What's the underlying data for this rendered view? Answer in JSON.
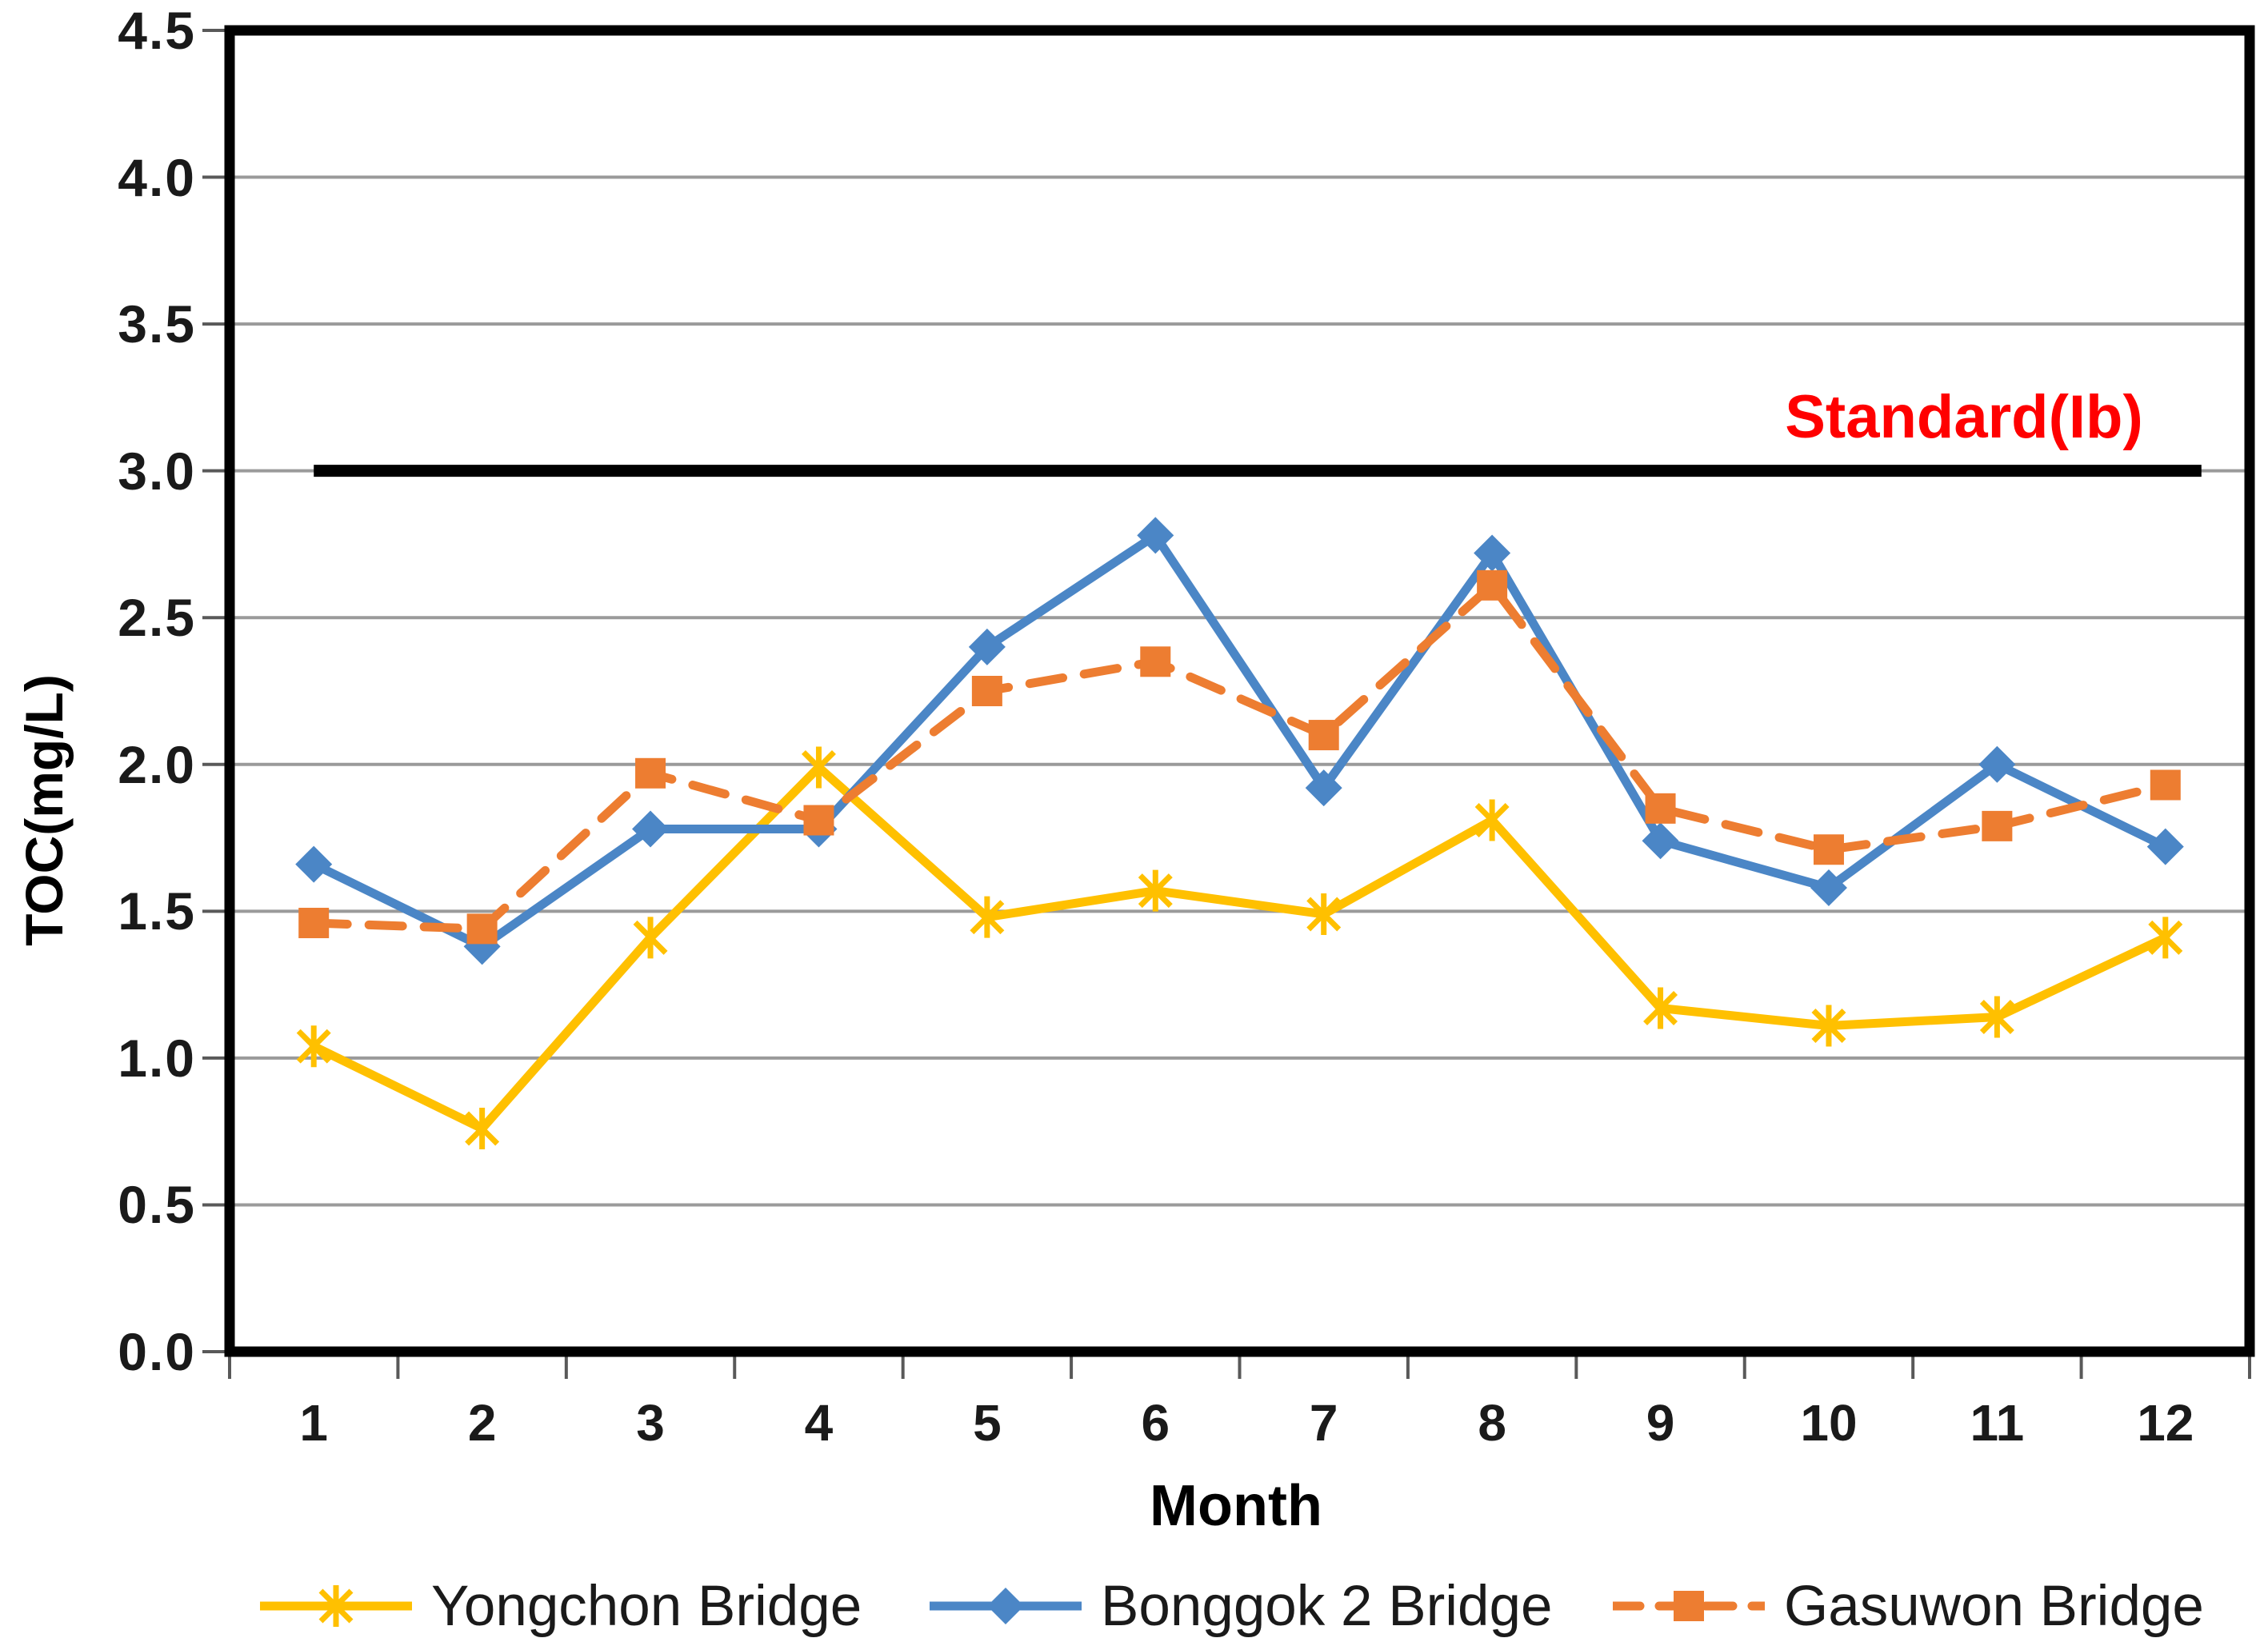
{
  "chart_data": {
    "type": "line",
    "title": "",
    "xlabel": "Month",
    "ylabel": "TOC(mg/L)",
    "ylim": [
      0,
      4.5
    ],
    "ytick_step": 0.5,
    "grid": true,
    "legend_position": "bottom",
    "categories": [
      "1",
      "2",
      "3",
      "4",
      "5",
      "6",
      "7",
      "8",
      "9",
      "10",
      "11",
      "12"
    ],
    "y_tick_labels": [
      "0.0",
      "0.5",
      "1.0",
      "1.5",
      "2.0",
      "2.5",
      "3.0",
      "3.5",
      "4.0",
      "4.5"
    ],
    "series": [
      {
        "name": "Yongchon Bridge",
        "color": "#FFC000",
        "marker": "star",
        "line_style": "solid",
        "values": [
          1.04,
          0.76,
          1.41,
          1.99,
          1.48,
          1.57,
          1.49,
          1.81,
          1.17,
          1.11,
          1.14,
          1.41
        ]
      },
      {
        "name": "Bonggok 2 Bridge",
        "color": "#4B86C6",
        "marker": "diamond",
        "line_style": "solid",
        "values": [
          1.66,
          1.38,
          1.78,
          1.78,
          2.4,
          2.78,
          1.92,
          2.72,
          1.74,
          1.58,
          2.0,
          1.72
        ]
      },
      {
        "name": "Gasuwon Bridge",
        "color": "#ED7D31",
        "marker": "square",
        "line_style": "dashed",
        "values": [
          1.46,
          1.44,
          1.97,
          1.81,
          2.25,
          2.35,
          2.1,
          2.61,
          1.85,
          1.71,
          1.79,
          1.93
        ]
      }
    ],
    "reference_line": {
      "value": 3.0,
      "label": "Standard(Ib)",
      "label_color": "#FF0000",
      "line_color": "#000000"
    },
    "style_colors": {
      "gridline": "#9A9A9A",
      "tick": "#595959",
      "frame": "#000000"
    }
  }
}
